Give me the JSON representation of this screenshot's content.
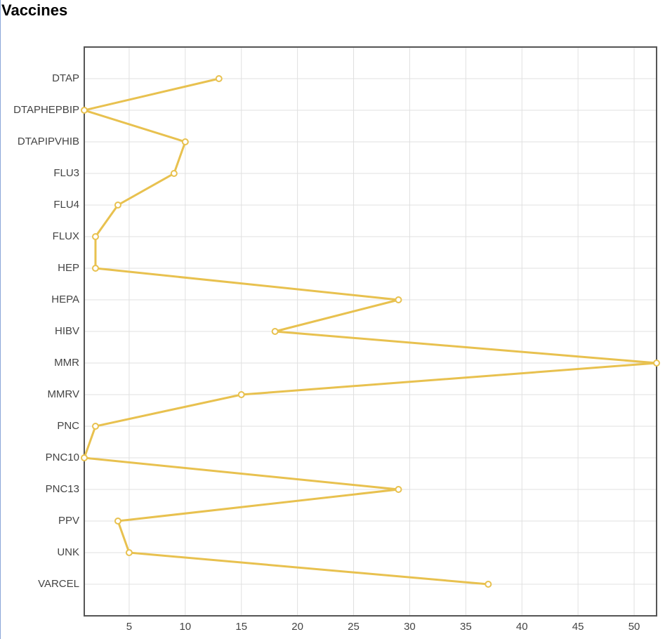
{
  "chart_data": {
    "type": "line",
    "title": "Vaccines",
    "orientation": "horizontal",
    "categories": [
      "DTAP",
      "DTAPHEPBIP",
      "DTAPIPVHIB",
      "FLU3",
      "FLU4",
      "FLUX",
      "HEP",
      "HEPA",
      "HIBV",
      "MMR",
      "MMRV",
      "PNC",
      "PNC10",
      "PNC13",
      "PPV",
      "UNK",
      "VARCEL"
    ],
    "values": [
      13,
      1,
      10,
      9,
      4,
      2,
      2,
      29,
      18,
      52,
      15,
      2,
      1,
      29,
      4,
      5,
      37
    ],
    "color": "#e8c14f",
    "xlim": [
      1,
      52
    ],
    "xticks": [
      5,
      10,
      15,
      20,
      25,
      30,
      35,
      40,
      45,
      50
    ],
    "grid": true
  }
}
